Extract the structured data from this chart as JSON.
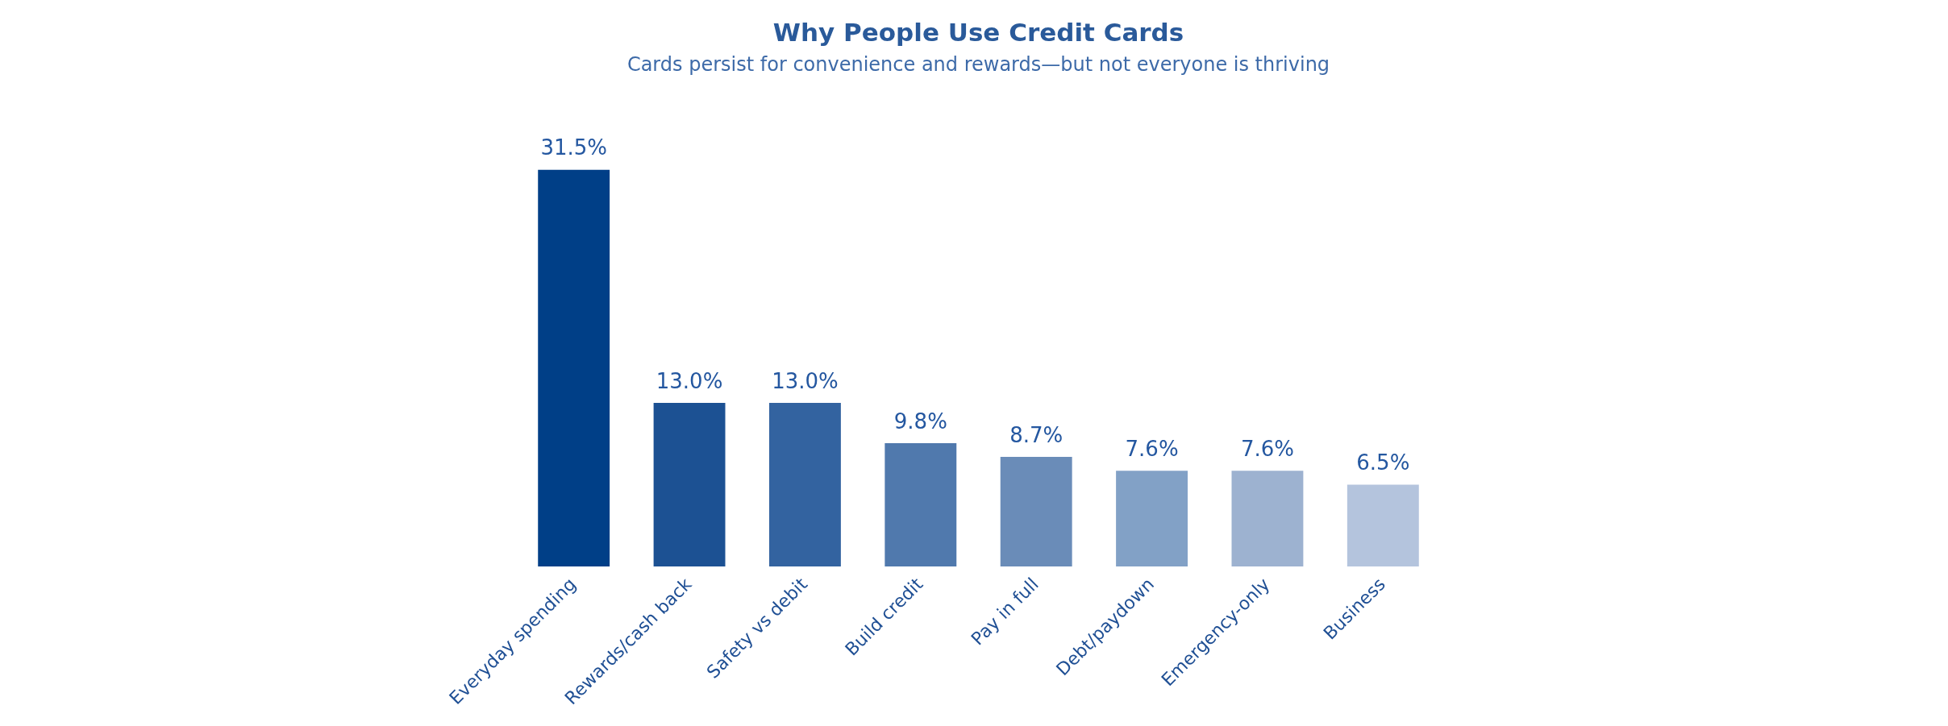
{
  "chart_data": {
    "type": "bar",
    "title": "Why People Use Credit Cards",
    "subtitle": "Cards persist for convenience and rewards—but not everyone is thriving",
    "categories": [
      "Everyday spending",
      "Rewards/cash back",
      "Safety vs debit",
      "Build credit",
      "Pay in full",
      "Debt/paydown",
      "Emergency-only",
      "Business"
    ],
    "values": [
      31.5,
      13.0,
      13.0,
      9.8,
      8.7,
      7.6,
      7.6,
      6.5
    ],
    "value_labels": [
      "31.5%",
      "13.0%",
      "13.0%",
      "9.8%",
      "8.7%",
      "7.6%",
      "7.6%",
      "6.5%"
    ],
    "colors": [
      "#003f87",
      "#1c5193",
      "#3363a0",
      "#5079ad",
      "#6a8cb8",
      "#82a1c6",
      "#9db2d0",
      "#b4c4dd"
    ],
    "grid": false,
    "legend": false
  }
}
